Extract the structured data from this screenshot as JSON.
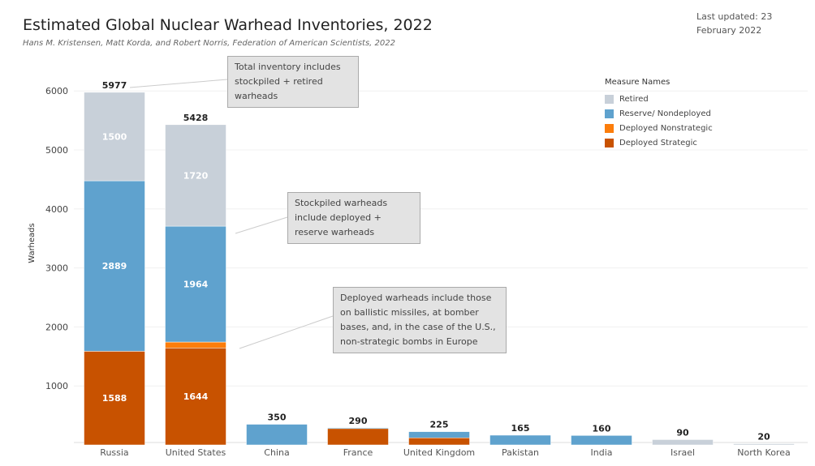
{
  "header": {
    "title": "Estimated Global Nuclear Warhead Inventories, 2022",
    "subtitle": "Hans M. Kristensen, Matt Korda, and Robert Norris, Federation of American Scientists, 2022",
    "updated": "Last updated: 23 February 2022"
  },
  "annotations": [
    "Total inventory includes stockpiled + retired warheads",
    "Stockpiled warheads include deployed + reserve warheads",
    "Deployed warheads include those on ballistic missiles, at bomber bases, and, in the case of the U.S., non-strategic bombs in Europe"
  ],
  "chart_data": {
    "type": "bar",
    "stacked": true,
    "title": "Estimated Global Nuclear Warhead Inventories, 2022",
    "ylabel": "Warheads",
    "xlabel": "",
    "ylim": [
      0,
      6300
    ],
    "yticks": [
      1000,
      2000,
      3000,
      4000,
      5000,
      6000
    ],
    "legend_title": "Measure Names",
    "legend_position": "top-right",
    "categories": [
      "Russia",
      "United States",
      "China",
      "France",
      "United Kingdom",
      "Pakistan",
      "India",
      "Israel",
      "North Korea"
    ],
    "totals": [
      5977,
      5428,
      350,
      290,
      225,
      165,
      160,
      90,
      20
    ],
    "series": [
      {
        "name": "Deployed Strategic",
        "color": "#c85200",
        "values": [
          1588,
          1644,
          0,
          280,
          120,
          0,
          0,
          0,
          0
        ],
        "labels": [
          "1588",
          "1644",
          "",
          "",
          "",
          "",
          "",
          "",
          ""
        ]
      },
      {
        "name": "Deployed Nonstrategic",
        "color": "#fc7d0b",
        "values": [
          0,
          100,
          0,
          0,
          0,
          0,
          0,
          0,
          0
        ],
        "labels": [
          "",
          "",
          "",
          "",
          "",
          "",
          "",
          "",
          ""
        ]
      },
      {
        "name": "Reserve/ Nondeployed",
        "color": "#5fa2ce",
        "values": [
          2889,
          1964,
          350,
          10,
          105,
          165,
          160,
          0,
          0
        ],
        "labels": [
          "2889",
          "1964",
          "",
          "",
          "",
          "",
          "",
          "",
          ""
        ]
      },
      {
        "name": "Retired",
        "color": "#c8d0d9",
        "values": [
          1500,
          1720,
          0,
          0,
          0,
          0,
          0,
          90,
          20
        ],
        "labels": [
          "1500",
          "1720",
          "",
          "",
          "",
          "",
          "",
          "",
          ""
        ]
      }
    ],
    "legend_order": [
      "Retired",
      "Reserve/ Nondeployed",
      "Deployed Nonstrategic",
      "Deployed Strategic"
    ]
  }
}
